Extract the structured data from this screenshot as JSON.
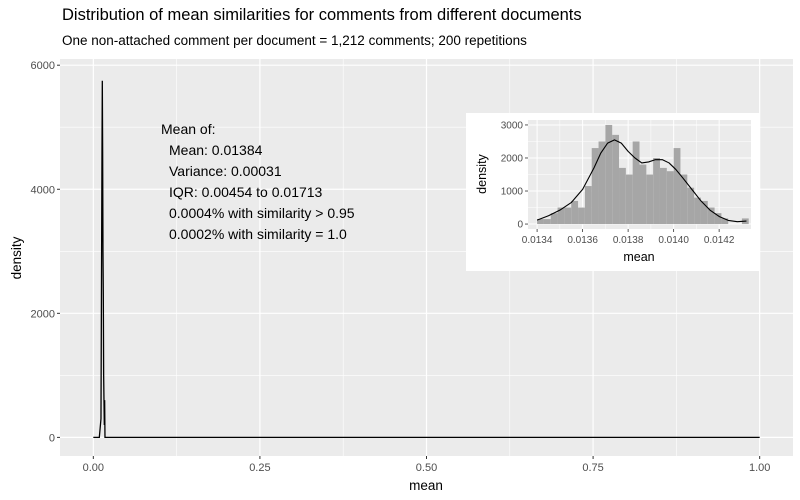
{
  "chart_data": [
    {
      "type": "line",
      "title": "Distribution of mean similarities for comments from different documents",
      "subtitle": "One non-attached comment per document = 1,212 comments; 200 repetitions",
      "xlabel": "mean",
      "ylabel": "density",
      "xlim": [
        -0.05,
        1.05
      ],
      "ylim": [
        -300,
        6100
      ],
      "x_ticks": [
        0,
        0.25,
        0.5,
        0.75,
        1
      ],
      "x_tick_labels": [
        "0.00",
        "0.25",
        "0.50",
        "0.75",
        "1.00"
      ],
      "y_ticks": [
        0,
        2000,
        4000,
        6000
      ],
      "y_tick_labels": [
        "0",
        "2000",
        "4000",
        "6000"
      ],
      "grid": true,
      "series": [
        {
          "x": [
            0.0,
            0.009,
            0.0115,
            0.0125,
            0.013,
            0.0135,
            0.014,
            0.0145,
            0.015,
            0.0155,
            0.016,
            0.0165,
            0.017,
            0.0175,
            0.018,
            1.0
          ],
          "values": [
            0,
            0,
            300,
            3200,
            4600,
            5750,
            4600,
            3000,
            2300,
            1000,
            600,
            200,
            600,
            0,
            0,
            0
          ]
        }
      ],
      "annotations": [
        "Mean of:",
        "Mean: 0.01384",
        "Variance: 0.00031",
        "IQR: 0.00454 to 0.01713",
        "0.0004% with similarity > 0.95",
        "0.0002% with similarity = 1.0"
      ]
    },
    {
      "type": "bar",
      "inset": true,
      "xlabel": "mean",
      "ylabel": "density",
      "xlim": [
        0.01336,
        0.01434
      ],
      "ylim": [
        -150,
        3150
      ],
      "x_ticks": [
        0.0134,
        0.0136,
        0.0138,
        0.014,
        0.0142
      ],
      "x_tick_labels": [
        "0.0134",
        "0.0136",
        "0.0138",
        "0.0140",
        "0.0142"
      ],
      "y_ticks": [
        0,
        1000,
        2000,
        3000
      ],
      "y_tick_labels": [
        "0",
        "1000",
        "2000",
        "3000"
      ],
      "bin_width": 3e-05,
      "bin_starts": [
        0.0134,
        0.01343,
        0.01346,
        0.01349,
        0.01352,
        0.01355,
        0.01358,
        0.01361,
        0.01364,
        0.01367,
        0.0137,
        0.01373,
        0.01376,
        0.01379,
        0.01382,
        0.01385,
        0.01388,
        0.01391,
        0.01394,
        0.01397,
        0.014,
        0.01403,
        0.01406,
        0.01409,
        0.01412,
        0.01415,
        0.01418,
        0.01421,
        0.01424,
        0.01427,
        0.0143
      ],
      "values": [
        150,
        150,
        330,
        500,
        500,
        700,
        500,
        1150,
        2300,
        2500,
        3000,
        2700,
        1700,
        1500,
        2500,
        1800,
        1500,
        2000,
        1700,
        1600,
        2300,
        1500,
        1100,
        800,
        700,
        500,
        330,
        170,
        0,
        0,
        170
      ],
      "density_x": [
        0.0134,
        0.01345,
        0.0135,
        0.01355,
        0.0136,
        0.01365,
        0.01368,
        0.01371,
        0.01374,
        0.01377,
        0.0138,
        0.01383,
        0.01386,
        0.01389,
        0.01392,
        0.01395,
        0.01398,
        0.01401,
        0.01404,
        0.01408,
        0.01412,
        0.01416,
        0.0142,
        0.01424,
        0.01428,
        0.01432
      ],
      "density_y": [
        120,
        250,
        420,
        650,
        1050,
        1700,
        2150,
        2450,
        2550,
        2450,
        2200,
        2000,
        1850,
        1880,
        1950,
        1950,
        1850,
        1650,
        1400,
        1050,
        700,
        420,
        230,
        110,
        70,
        90
      ]
    }
  ]
}
